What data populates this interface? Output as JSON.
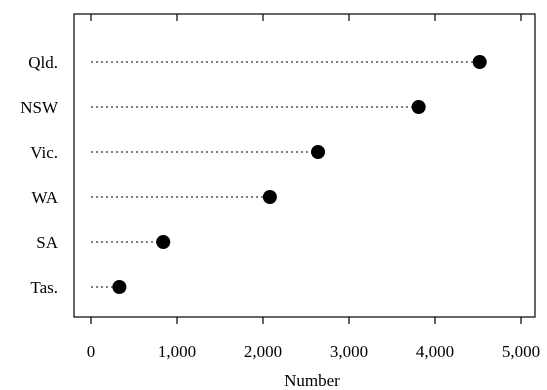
{
  "chart_data": {
    "type": "scatter",
    "title": "",
    "xlabel": "Number",
    "ylabel": "",
    "xlim": [
      0,
      5000
    ],
    "x_ticks": [
      0,
      1000,
      2000,
      3000,
      4000,
      5000
    ],
    "x_tick_labels": [
      "0",
      "1,000",
      "2,000",
      "3,000",
      "4,000",
      "5,000"
    ],
    "grid": false,
    "categories": [
      "Qld.",
      "NSW",
      "Vic.",
      "WA",
      "SA",
      "Tas."
    ],
    "values": [
      4520,
      3810,
      2640,
      2080,
      840,
      330
    ]
  }
}
